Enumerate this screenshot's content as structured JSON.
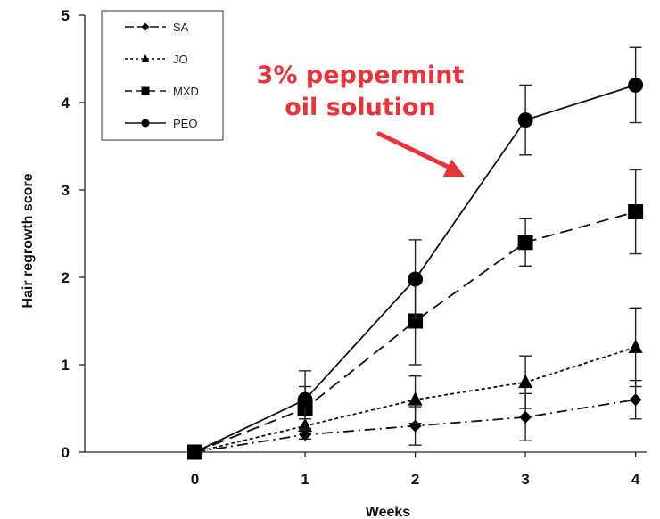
{
  "chart_data": {
    "type": "line",
    "xlabel": "Weeks",
    "ylabel": "Hair regrowth score",
    "x": [
      0,
      1,
      2,
      3,
      4
    ],
    "xticks": [
      "0",
      "1",
      "2",
      "3",
      "4"
    ],
    "yticks": [
      "0",
      "1",
      "2",
      "3",
      "4",
      "5"
    ],
    "xlim": [
      -1,
      4.1
    ],
    "ylim": [
      0,
      5
    ],
    "grid": false,
    "legend_position": "top-left",
    "series": [
      {
        "name": "SA",
        "marker": "diamond",
        "line_style": "dash-dot",
        "values": [
          0,
          0.2,
          0.3,
          0.4,
          0.6
        ],
        "error": [
          0,
          0.05,
          0.22,
          0.27,
          0.22
        ]
      },
      {
        "name": "JO",
        "marker": "triangle",
        "line_style": "dotted",
        "values": [
          0,
          0.3,
          0.6,
          0.8,
          1.2
        ],
        "error": [
          0,
          0.08,
          0.27,
          0.3,
          0.45
        ]
      },
      {
        "name": "MXD",
        "marker": "square",
        "line_style": "dashed",
        "values": [
          0,
          0.5,
          1.5,
          2.4,
          2.75
        ],
        "error": [
          0,
          0.25,
          0.5,
          0.27,
          0.48
        ]
      },
      {
        "name": "PEO",
        "marker": "circle",
        "line_style": "solid",
        "values": [
          0,
          0.6,
          1.98,
          3.8,
          4.2
        ],
        "error": [
          0,
          0.33,
          0.45,
          0.4,
          0.43
        ]
      }
    ],
    "annotation": {
      "lines": [
        "3% peppermint",
        "oil solution"
      ],
      "color": "#e8333a",
      "arrow_target": {
        "x": 2.45,
        "y": 3.15
      }
    }
  }
}
